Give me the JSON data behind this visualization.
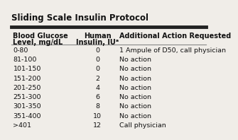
{
  "title": "Sliding Scale Insulin Protocol",
  "col1_header": [
    "Blood Glucose",
    "Level, mg/dL"
  ],
  "col2_header": [
    "Human",
    "Insulin, IUᵃ"
  ],
  "col3_header": [
    "Additional Action Requested"
  ],
  "rows": [
    [
      "0-80",
      "0",
      "1 Ampule of D50, call physician"
    ],
    [
      "81-100",
      "0",
      "No action"
    ],
    [
      "101-150",
      "0",
      "No action"
    ],
    [
      "151-200",
      "2",
      "No action"
    ],
    [
      "201-250",
      "4",
      "No action"
    ],
    [
      "251-300",
      "6",
      "No action"
    ],
    [
      "301-350",
      "8",
      "No action"
    ],
    [
      "351-400",
      "10",
      "No action"
    ],
    [
      ">401",
      "12",
      "Call physician"
    ]
  ],
  "bg_color": "#f0ede8",
  "thick_line_color": "#222222",
  "thin_line_color": "#888888",
  "text_color": "#111111",
  "title_fontsize": 8.5,
  "header_fontsize": 7.0,
  "row_fontsize": 6.8
}
